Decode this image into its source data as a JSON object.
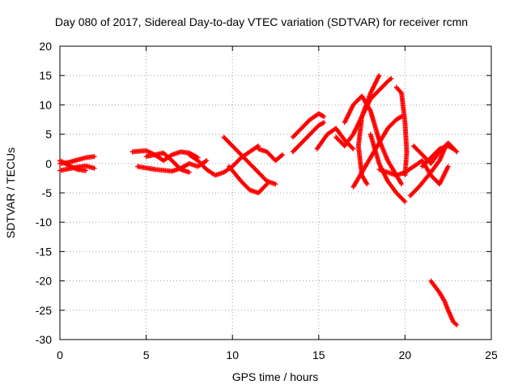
{
  "chart_data": {
    "type": "scatter",
    "title": "Day 080 of 2017, Sidereal Day-to-day VTEC variation (SDTVAR) for receiver rcmn",
    "xlabel": "GPS time / hours",
    "ylabel": "SDTVAR / TECUs",
    "xlim": [
      0,
      25
    ],
    "ylim": [
      -30,
      20
    ],
    "xticks": [
      0,
      5,
      10,
      15,
      20,
      25
    ],
    "yticks": [
      20,
      15,
      10,
      5,
      0,
      -5,
      -10,
      -15,
      -20,
      -25,
      -30
    ],
    "grid": true,
    "marker": "+",
    "color": "#ff0000",
    "series": [
      {
        "values": [
          [
            0.0,
            0.0
          ],
          [
            0.5,
            0.2
          ],
          [
            1.0,
            0.6
          ],
          [
            1.5,
            1.0
          ],
          [
            2.0,
            1.2
          ]
        ]
      },
      {
        "values": [
          [
            0.0,
            -1.2
          ],
          [
            0.5,
            -0.9
          ],
          [
            1.0,
            -0.6
          ],
          [
            1.5,
            -0.4
          ],
          [
            2.0,
            -0.8
          ]
        ]
      },
      {
        "values": [
          [
            0.0,
            0.5
          ],
          [
            0.5,
            -0.3
          ],
          [
            1.0,
            -1.0
          ],
          [
            1.5,
            -1.2
          ]
        ]
      },
      {
        "values": [
          [
            4.2,
            2.0
          ],
          [
            5.0,
            2.2
          ],
          [
            5.5,
            1.5
          ],
          [
            6.0,
            0.5
          ],
          [
            6.5,
            1.5
          ],
          [
            7.0,
            2.0
          ],
          [
            7.5,
            1.8
          ],
          [
            8.0,
            1.0
          ]
        ]
      },
      {
        "values": [
          [
            4.5,
            -0.5
          ],
          [
            5.5,
            -1.0
          ],
          [
            6.5,
            -1.3
          ],
          [
            7.0,
            -0.8
          ],
          [
            7.5,
            0.0
          ],
          [
            8.0,
            -0.5
          ],
          [
            8.5,
            0.5
          ]
        ]
      },
      {
        "values": [
          [
            5.0,
            1.2
          ],
          [
            6.0,
            1.8
          ],
          [
            6.5,
            0.5
          ],
          [
            7.0,
            -1.0
          ],
          [
            7.5,
            -1.5
          ]
        ]
      },
      {
        "values": [
          [
            7.5,
            1.5
          ],
          [
            8.0,
            0.5
          ],
          [
            8.5,
            -1.0
          ],
          [
            9.0,
            -2.0
          ],
          [
            9.5,
            -1.5
          ],
          [
            10.0,
            -0.5
          ],
          [
            10.5,
            1.0
          ],
          [
            11.0,
            2.0
          ],
          [
            11.5,
            3.0
          ]
        ]
      },
      {
        "values": [
          [
            9.5,
            4.5
          ],
          [
            10.0,
            3.0
          ],
          [
            10.5,
            1.5
          ],
          [
            11.0,
            0.0
          ],
          [
            11.5,
            -1.5
          ],
          [
            12.0,
            -3.0
          ],
          [
            12.5,
            -3.5
          ]
        ]
      },
      {
        "values": [
          [
            9.8,
            -0.5
          ],
          [
            10.5,
            -3.0
          ],
          [
            11.0,
            -4.5
          ],
          [
            11.5,
            -5.0
          ],
          [
            12.0,
            -3.5
          ]
        ]
      },
      {
        "values": [
          [
            11.5,
            2.5
          ],
          [
            12.0,
            2.0
          ],
          [
            12.5,
            0.5
          ],
          [
            12.9,
            1.5
          ]
        ]
      },
      {
        "values": [
          [
            13.5,
            4.5
          ],
          [
            14.0,
            6.0
          ],
          [
            14.5,
            7.5
          ],
          [
            15.0,
            8.5
          ],
          [
            15.3,
            8.0
          ]
        ]
      },
      {
        "values": [
          [
            13.5,
            2.0
          ],
          [
            14.0,
            3.5
          ],
          [
            14.5,
            5.0
          ],
          [
            15.0,
            6.5
          ],
          [
            15.3,
            7.0
          ]
        ]
      },
      {
        "values": [
          [
            14.9,
            2.5
          ],
          [
            15.5,
            5.0
          ],
          [
            16.0,
            6.0
          ],
          [
            16.5,
            4.0
          ],
          [
            17.0,
            2.5
          ]
        ]
      },
      {
        "values": [
          [
            16.0,
            4.5
          ],
          [
            16.5,
            3.0
          ],
          [
            17.0,
            5.0
          ],
          [
            17.5,
            8.0
          ],
          [
            18.0,
            11.0
          ],
          [
            18.5,
            12.5
          ],
          [
            19.0,
            14.0
          ],
          [
            19.2,
            14.5
          ]
        ]
      },
      {
        "values": [
          [
            16.5,
            7.0
          ],
          [
            17.0,
            10.0
          ],
          [
            17.5,
            11.5
          ],
          [
            18.0,
            9.0
          ],
          [
            18.5,
            4.0
          ],
          [
            19.0,
            0.5
          ],
          [
            19.5,
            -2.0
          ],
          [
            19.8,
            -3.5
          ]
        ]
      },
      {
        "values": [
          [
            18.5,
            15.0
          ],
          [
            18.0,
            12.0
          ],
          [
            17.5,
            8.0
          ],
          [
            17.3,
            3.0
          ],
          [
            17.5,
            -2.0
          ],
          [
            17.8,
            -3.5
          ]
        ]
      },
      {
        "values": [
          [
            18.0,
            5.0
          ],
          [
            18.5,
            0.0
          ],
          [
            19.0,
            -3.0
          ],
          [
            19.5,
            -5.0
          ],
          [
            20.0,
            -6.5
          ]
        ]
      },
      {
        "values": [
          [
            17.0,
            -4.0
          ],
          [
            17.5,
            -1.5
          ],
          [
            18.0,
            1.0
          ],
          [
            18.5,
            3.5
          ],
          [
            19.0,
            6.0
          ],
          [
            19.5,
            7.5
          ],
          [
            19.8,
            8.0
          ]
        ]
      },
      {
        "values": [
          [
            19.5,
            13.0
          ],
          [
            19.8,
            12.0
          ],
          [
            20.0,
            7.0
          ],
          [
            20.1,
            2.0
          ],
          [
            20.0,
            -2.0
          ]
        ]
      },
      {
        "values": [
          [
            18.5,
            -1.0
          ],
          [
            19.0,
            -1.5
          ],
          [
            19.5,
            -2.0
          ],
          [
            20.0,
            -1.5
          ],
          [
            20.5,
            -0.5
          ],
          [
            21.0,
            0.5
          ],
          [
            21.5,
            -2.0
          ],
          [
            22.0,
            -3.5
          ],
          [
            22.5,
            -0.5
          ]
        ]
      },
      {
        "values": [
          [
            20.5,
            3.0
          ],
          [
            21.0,
            1.5
          ],
          [
            21.5,
            0.0
          ],
          [
            22.0,
            2.0
          ],
          [
            22.5,
            3.5
          ],
          [
            23.0,
            2.0
          ]
        ]
      },
      {
        "values": [
          [
            20.3,
            -5.5
          ],
          [
            20.8,
            -4.0
          ],
          [
            21.5,
            -1.5
          ],
          [
            22.0,
            0.5
          ],
          [
            22.3,
            2.5
          ]
        ]
      },
      {
        "values": [
          [
            21.0,
            -0.5
          ],
          [
            21.5,
            1.0
          ],
          [
            22.0,
            2.5
          ],
          [
            22.5,
            3.0
          ],
          [
            22.8,
            2.5
          ]
        ]
      },
      {
        "values": [
          [
            21.5,
            -20.0
          ],
          [
            22.0,
            -22.0
          ],
          [
            22.3,
            -23.5
          ],
          [
            22.5,
            -25.0
          ],
          [
            22.8,
            -27.0
          ],
          [
            23.0,
            -27.5
          ]
        ]
      }
    ]
  }
}
